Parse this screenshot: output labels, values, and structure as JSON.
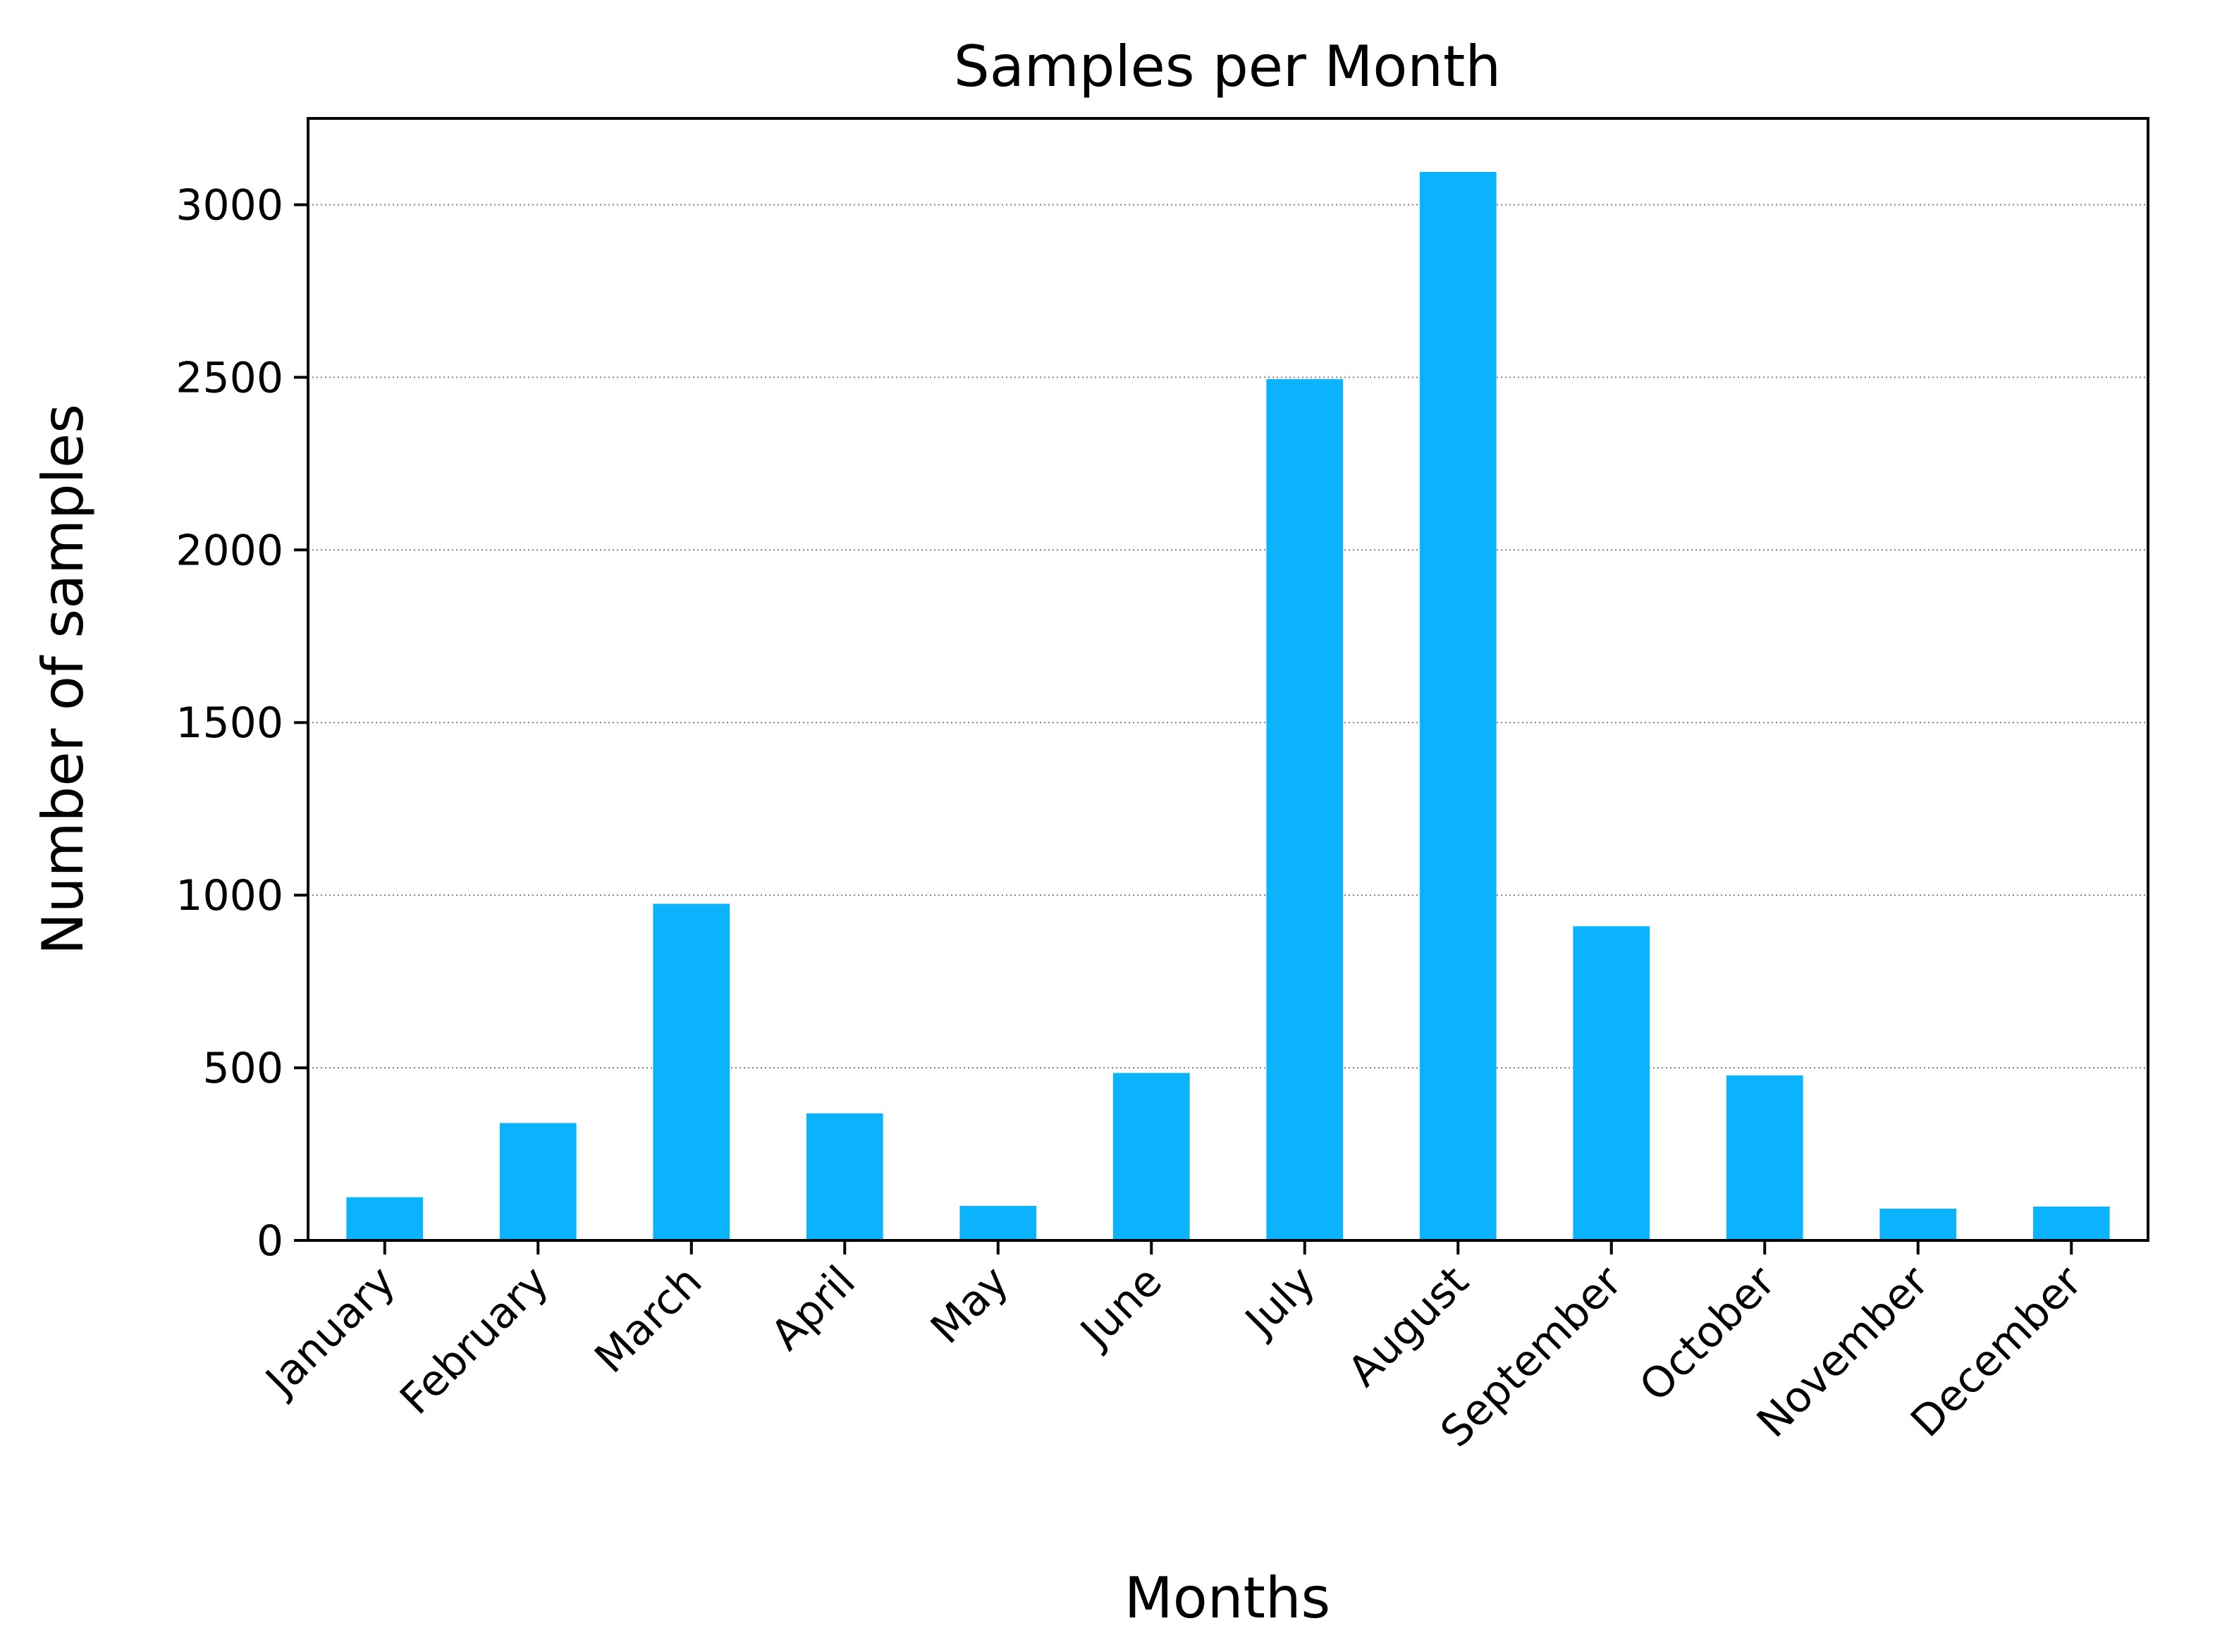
{
  "chart_data": {
    "type": "bar",
    "title": "Samples per Month",
    "xlabel": "Months",
    "ylabel": "Number of samples",
    "categories": [
      "January",
      "February",
      "March",
      "April",
      "May",
      "June",
      "July",
      "August",
      "September",
      "October",
      "November",
      "December"
    ],
    "values": [
      125,
      340,
      975,
      368,
      100,
      485,
      2495,
      3095,
      910,
      478,
      92,
      98
    ],
    "ylim": [
      0,
      3250
    ],
    "yticks": [
      0,
      500,
      1000,
      1500,
      2000,
      2500,
      3000
    ],
    "grid": "y-dotted",
    "bar_color": "#0bb3fd"
  }
}
